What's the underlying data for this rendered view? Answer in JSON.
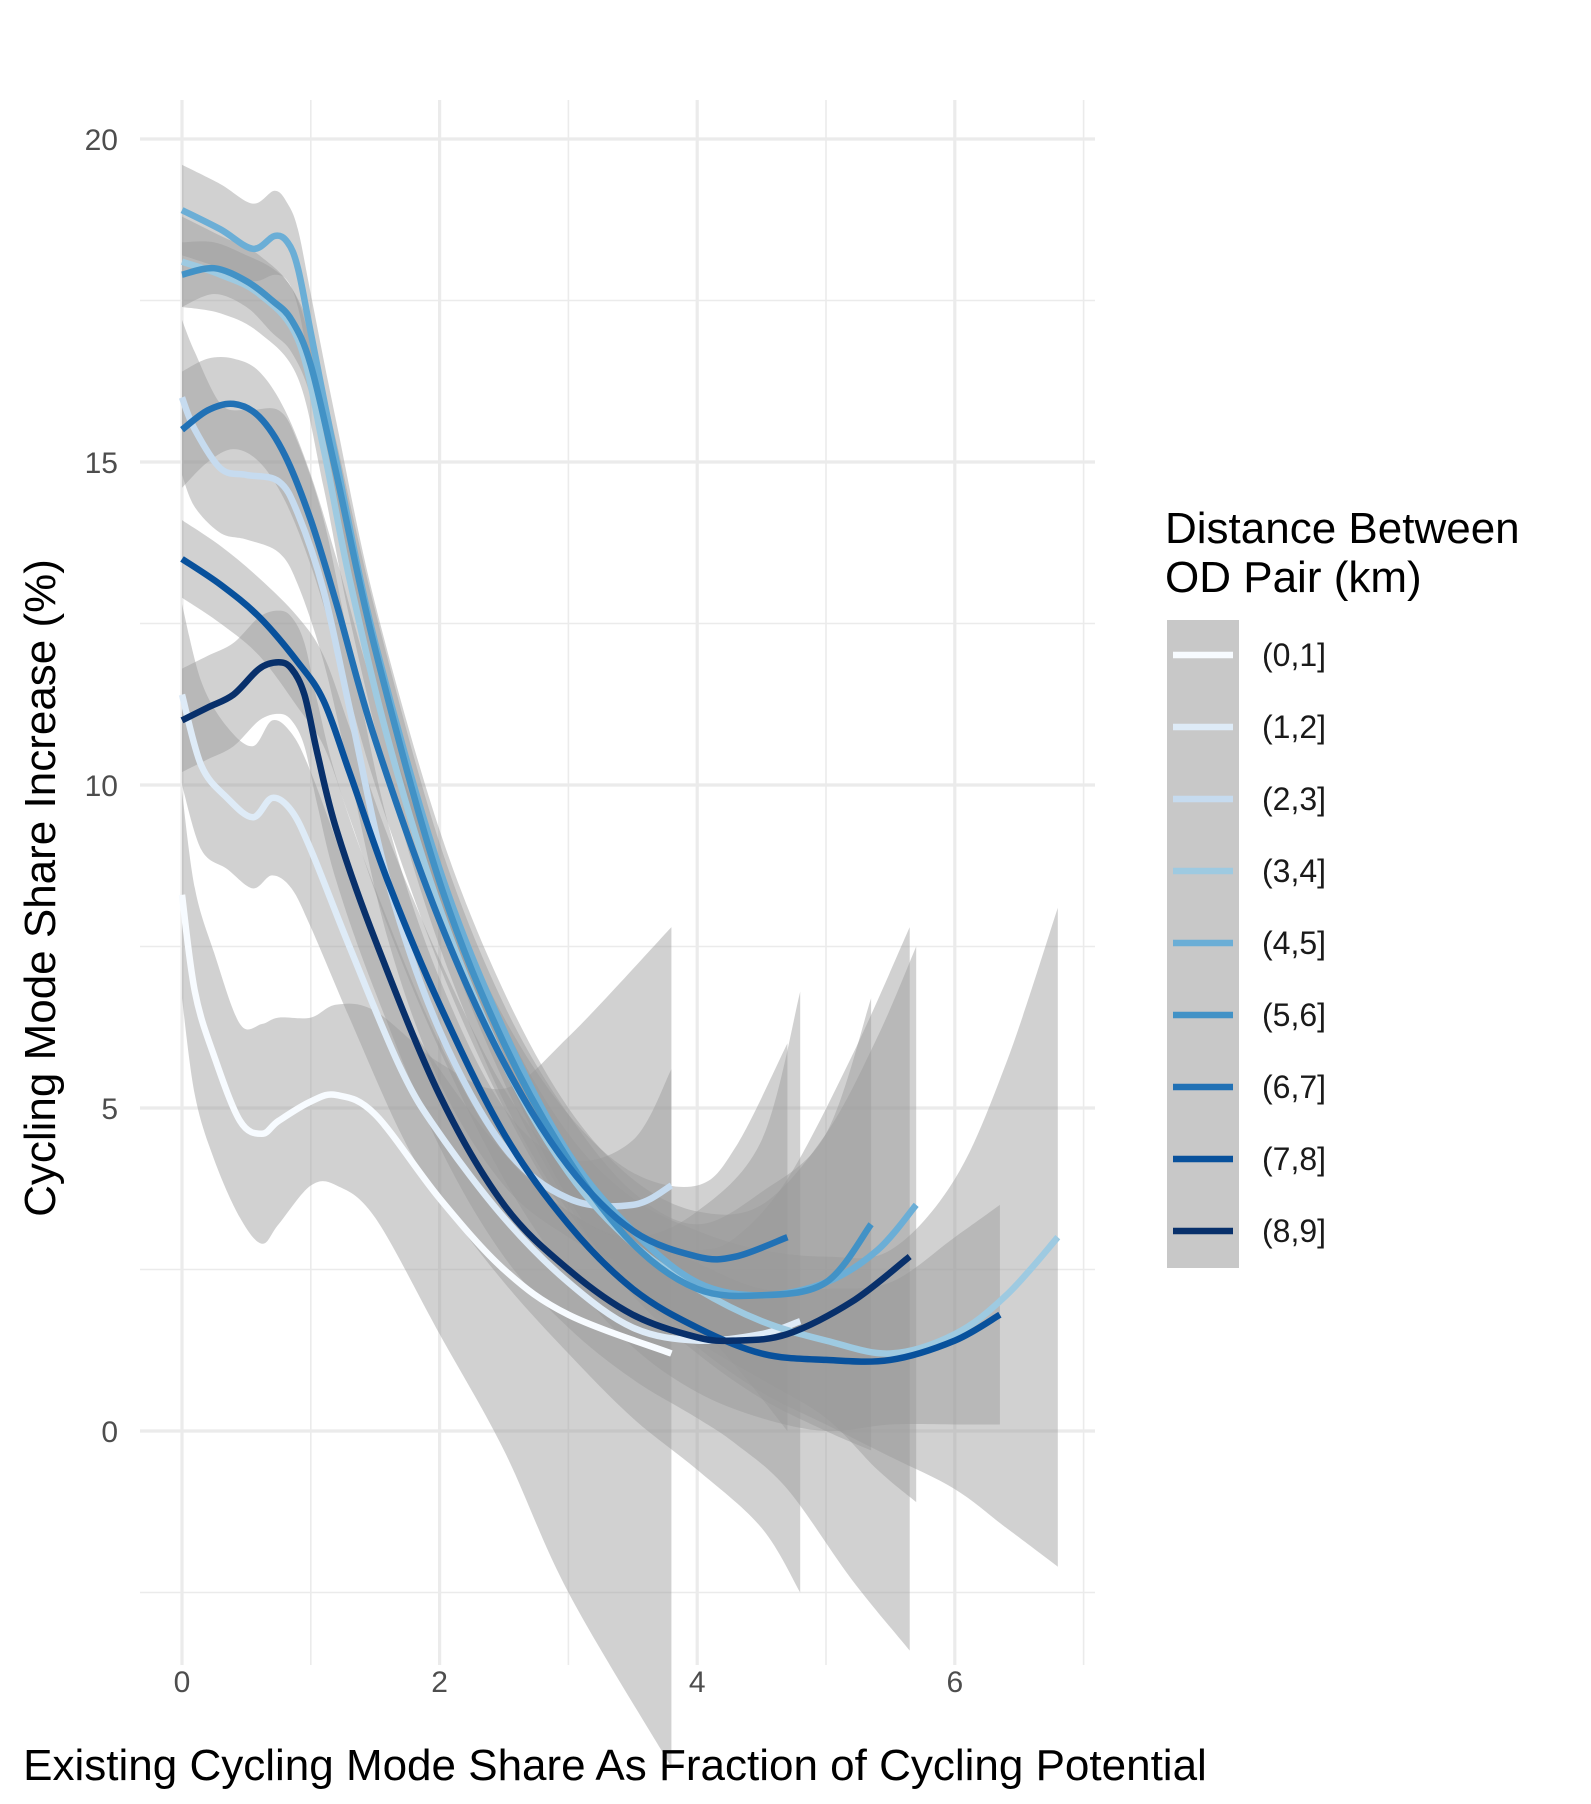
{
  "chart_data": {
    "type": "line",
    "title": "",
    "xlabel": "Existing Cycling Mode Share As Fraction of Cycling Potential",
    "ylabel": "Cycling Mode Share Increase (%)",
    "xlim": [
      -0.3,
      7.1
    ],
    "ylim": [
      -3.5,
      20.8
    ],
    "x_ticks": [
      0,
      2,
      4,
      6
    ],
    "y_ticks": [
      0,
      5,
      10,
      15,
      20
    ],
    "x_tick_labels": [
      "0",
      "2",
      "4",
      "6"
    ],
    "y_tick_labels": [
      "0",
      "5",
      "10",
      "15",
      "20"
    ],
    "grid": true,
    "legend": {
      "title_lines": [
        "Distance Between",
        "OD Pair (km)"
      ],
      "position": "right"
    },
    "series": [
      {
        "name": "(0,1]",
        "color": "#f7fbff",
        "x": [
          0,
          0.1,
          0.25,
          0.45,
          0.62,
          0.75,
          1.0,
          1.2,
          1.5,
          2.0,
          2.5,
          3.0,
          3.8
        ],
        "y": [
          8.3,
          6.8,
          5.8,
          4.8,
          4.6,
          4.8,
          5.1,
          5.2,
          4.9,
          3.6,
          2.5,
          1.8,
          1.2
        ],
        "lo": [
          6.7,
          5.2,
          4.2,
          3.3,
          2.9,
          3.2,
          3.8,
          3.8,
          3.3,
          1.5,
          -0.3,
          -2.5,
          -5.2
        ],
        "hi": [
          9.9,
          8.4,
          7.4,
          6.3,
          6.3,
          6.4,
          6.4,
          6.6,
          6.5,
          5.7,
          5.3,
          6.1,
          7.8
        ]
      },
      {
        "name": "(1,2]",
        "color": "#deebf7",
        "x": [
          0,
          0.15,
          0.35,
          0.55,
          0.7,
          0.85,
          1.0,
          1.3,
          1.7,
          2.0,
          2.5,
          3.0,
          3.5,
          4.0,
          4.5,
          4.8
        ],
        "y": [
          11.4,
          10.3,
          9.8,
          9.5,
          9.8,
          9.6,
          9.0,
          7.5,
          5.6,
          4.6,
          3.3,
          2.3,
          1.6,
          1.4,
          1.5,
          1.7
        ],
        "lo": [
          10.0,
          9.0,
          8.7,
          8.4,
          8.6,
          8.4,
          7.8,
          6.4,
          4.6,
          3.6,
          2.3,
          1.2,
          0.2,
          -0.6,
          -1.5,
          -2.5
        ],
        "hi": [
          12.8,
          11.6,
          10.9,
          10.6,
          11.0,
          10.8,
          10.2,
          8.6,
          6.6,
          5.6,
          4.3,
          3.4,
          3.0,
          3.4,
          4.5,
          6.8
        ]
      },
      {
        "name": "(2,3]",
        "color": "#c6dbef",
        "x": [
          0,
          0.1,
          0.3,
          0.5,
          0.75,
          0.9,
          1.1,
          1.3,
          1.6,
          2.0,
          2.5,
          3.0,
          3.5,
          3.8
        ],
        "y": [
          16.0,
          15.5,
          14.9,
          14.8,
          14.7,
          14.2,
          13.0,
          11.2,
          8.5,
          6.2,
          4.4,
          3.6,
          3.5,
          3.8
        ],
        "lo": [
          14.8,
          14.3,
          13.9,
          13.8,
          13.6,
          13.1,
          11.9,
          10.2,
          7.6,
          5.4,
          3.8,
          3.0,
          2.5,
          2.0
        ],
        "hi": [
          17.2,
          16.7,
          15.9,
          15.8,
          15.8,
          15.3,
          14.1,
          12.2,
          9.4,
          7.0,
          5.0,
          4.2,
          4.5,
          5.6
        ]
      },
      {
        "name": "(3,4]",
        "color": "#9ecae1",
        "x": [
          0,
          0.3,
          0.6,
          0.9,
          1.1,
          1.3,
          1.6,
          2.0,
          2.5,
          3.0,
          3.5,
          4.0,
          4.5,
          5.0,
          5.5,
          6.0,
          6.4,
          6.8
        ],
        "y": [
          18.1,
          17.9,
          17.6,
          16.9,
          15.2,
          13.2,
          10.7,
          8.1,
          5.7,
          4.0,
          2.9,
          2.2,
          1.7,
          1.4,
          1.2,
          1.5,
          2.1,
          3.0
        ],
        "lo": [
          17.4,
          17.3,
          17.0,
          16.3,
          14.6,
          12.6,
          10.1,
          7.5,
          5.1,
          3.4,
          2.2,
          1.3,
          0.6,
          0.1,
          -0.4,
          -0.9,
          -1.5,
          -2.1
        ],
        "hi": [
          18.8,
          18.5,
          18.2,
          17.5,
          15.8,
          13.8,
          11.3,
          8.7,
          6.3,
          4.6,
          3.6,
          3.1,
          2.8,
          2.7,
          2.8,
          3.9,
          5.7,
          8.1
        ]
      },
      {
        "name": "(4,5]",
        "color": "#6baed6",
        "x": [
          0,
          0.3,
          0.55,
          0.72,
          0.82,
          0.9,
          1.0,
          1.2,
          1.5,
          2.0,
          2.5,
          3.0,
          3.5,
          4.0,
          4.5,
          5.0,
          5.4,
          5.7
        ],
        "y": [
          18.9,
          18.6,
          18.3,
          18.5,
          18.4,
          18.0,
          17.0,
          15.0,
          12.2,
          8.7,
          6.2,
          4.3,
          3.1,
          2.3,
          2.1,
          2.3,
          2.8,
          3.5
        ],
        "lo": [
          18.2,
          18.0,
          17.8,
          17.9,
          17.8,
          17.4,
          16.4,
          14.4,
          11.6,
          8.1,
          5.6,
          3.6,
          2.3,
          1.4,
          0.8,
          0.2,
          -0.6,
          -1.1
        ],
        "hi": [
          19.6,
          19.3,
          19.0,
          19.2,
          19.0,
          18.6,
          17.6,
          15.6,
          12.8,
          9.3,
          6.8,
          5.0,
          3.9,
          3.4,
          3.5,
          4.6,
          6.1,
          7.5
        ]
      },
      {
        "name": "(5,6]",
        "color": "#4292c6",
        "x": [
          0,
          0.25,
          0.5,
          0.7,
          0.85,
          1.0,
          1.2,
          1.5,
          2.0,
          2.5,
          3.0,
          3.5,
          4.0,
          4.5,
          5.0,
          5.35
        ],
        "y": [
          17.9,
          18.0,
          17.8,
          17.5,
          17.2,
          16.5,
          14.8,
          12.1,
          8.5,
          6.0,
          4.2,
          2.9,
          2.2,
          2.1,
          2.3,
          3.2
        ],
        "lo": [
          17.4,
          17.6,
          17.4,
          17.0,
          16.7,
          16.0,
          14.3,
          11.5,
          7.9,
          5.4,
          3.5,
          2.1,
          1.2,
          0.5,
          0.0,
          -0.3
        ],
        "hi": [
          18.4,
          18.4,
          18.2,
          18.0,
          17.7,
          17.0,
          15.3,
          12.7,
          9.1,
          6.6,
          4.9,
          3.7,
          3.2,
          3.7,
          4.6,
          6.7
        ]
      },
      {
        "name": "(6,7]",
        "color": "#2171b5",
        "x": [
          0,
          0.2,
          0.4,
          0.6,
          0.8,
          1.0,
          1.2,
          1.5,
          2.0,
          2.5,
          3.0,
          3.5,
          4.0,
          4.3,
          4.7
        ],
        "y": [
          15.5,
          15.8,
          15.9,
          15.7,
          15.1,
          14.1,
          12.8,
          10.7,
          7.9,
          5.7,
          4.1,
          3.1,
          2.7,
          2.7,
          3.0
        ],
        "lo": [
          14.6,
          15.0,
          15.2,
          15.0,
          14.4,
          13.4,
          12.1,
          10.0,
          7.2,
          5.0,
          3.3,
          2.2,
          1.6,
          1.0,
          0.0
        ],
        "hi": [
          16.4,
          16.6,
          16.6,
          16.4,
          15.8,
          14.8,
          13.5,
          11.4,
          8.6,
          6.4,
          4.9,
          4.0,
          3.8,
          4.4,
          6.0
        ]
      },
      {
        "name": "(7,8]",
        "color": "#08519c",
        "x": [
          0,
          0.3,
          0.6,
          0.9,
          1.1,
          1.3,
          1.6,
          2.0,
          2.5,
          3.0,
          3.5,
          4.0,
          4.5,
          5.0,
          5.5,
          6.0,
          6.35
        ],
        "y": [
          13.5,
          13.1,
          12.6,
          11.9,
          11.3,
          10.2,
          8.5,
          6.6,
          4.6,
          3.2,
          2.2,
          1.6,
          1.2,
          1.1,
          1.1,
          1.4,
          1.8
        ],
        "lo": [
          12.9,
          12.5,
          12.0,
          11.2,
          10.6,
          9.5,
          7.8,
          5.9,
          3.9,
          2.4,
          1.3,
          0.6,
          0.2,
          0.0,
          0.1,
          0.1,
          0.1
        ],
        "hi": [
          14.1,
          13.7,
          13.2,
          12.6,
          12.0,
          10.9,
          9.2,
          7.3,
          5.3,
          4.0,
          3.1,
          2.6,
          2.2,
          2.2,
          2.3,
          3.0,
          3.5
        ]
      },
      {
        "name": "(8,9]",
        "color": "#08306b",
        "x": [
          0,
          0.2,
          0.4,
          0.6,
          0.75,
          0.85,
          0.95,
          1.05,
          1.2,
          1.5,
          2.0,
          2.5,
          3.0,
          3.5,
          4.0,
          4.3,
          4.7,
          5.2,
          5.65
        ],
        "y": [
          11.0,
          11.2,
          11.4,
          11.8,
          11.9,
          11.8,
          11.4,
          10.5,
          9.3,
          7.6,
          5.2,
          3.5,
          2.5,
          1.8,
          1.45,
          1.4,
          1.5,
          2.0,
          2.7
        ],
        "lo": [
          10.2,
          10.4,
          10.6,
          11.0,
          11.1,
          11.0,
          10.6,
          9.7,
          8.5,
          6.8,
          4.4,
          2.7,
          1.6,
          0.8,
          0.2,
          -0.2,
          -0.9,
          -2.3,
          -3.4
        ],
        "hi": [
          11.8,
          12.0,
          12.2,
          12.6,
          12.7,
          12.6,
          12.2,
          11.3,
          10.1,
          8.4,
          6.0,
          4.3,
          3.4,
          2.9,
          2.8,
          3.0,
          3.9,
          5.8,
          7.8
        ]
      }
    ]
  }
}
